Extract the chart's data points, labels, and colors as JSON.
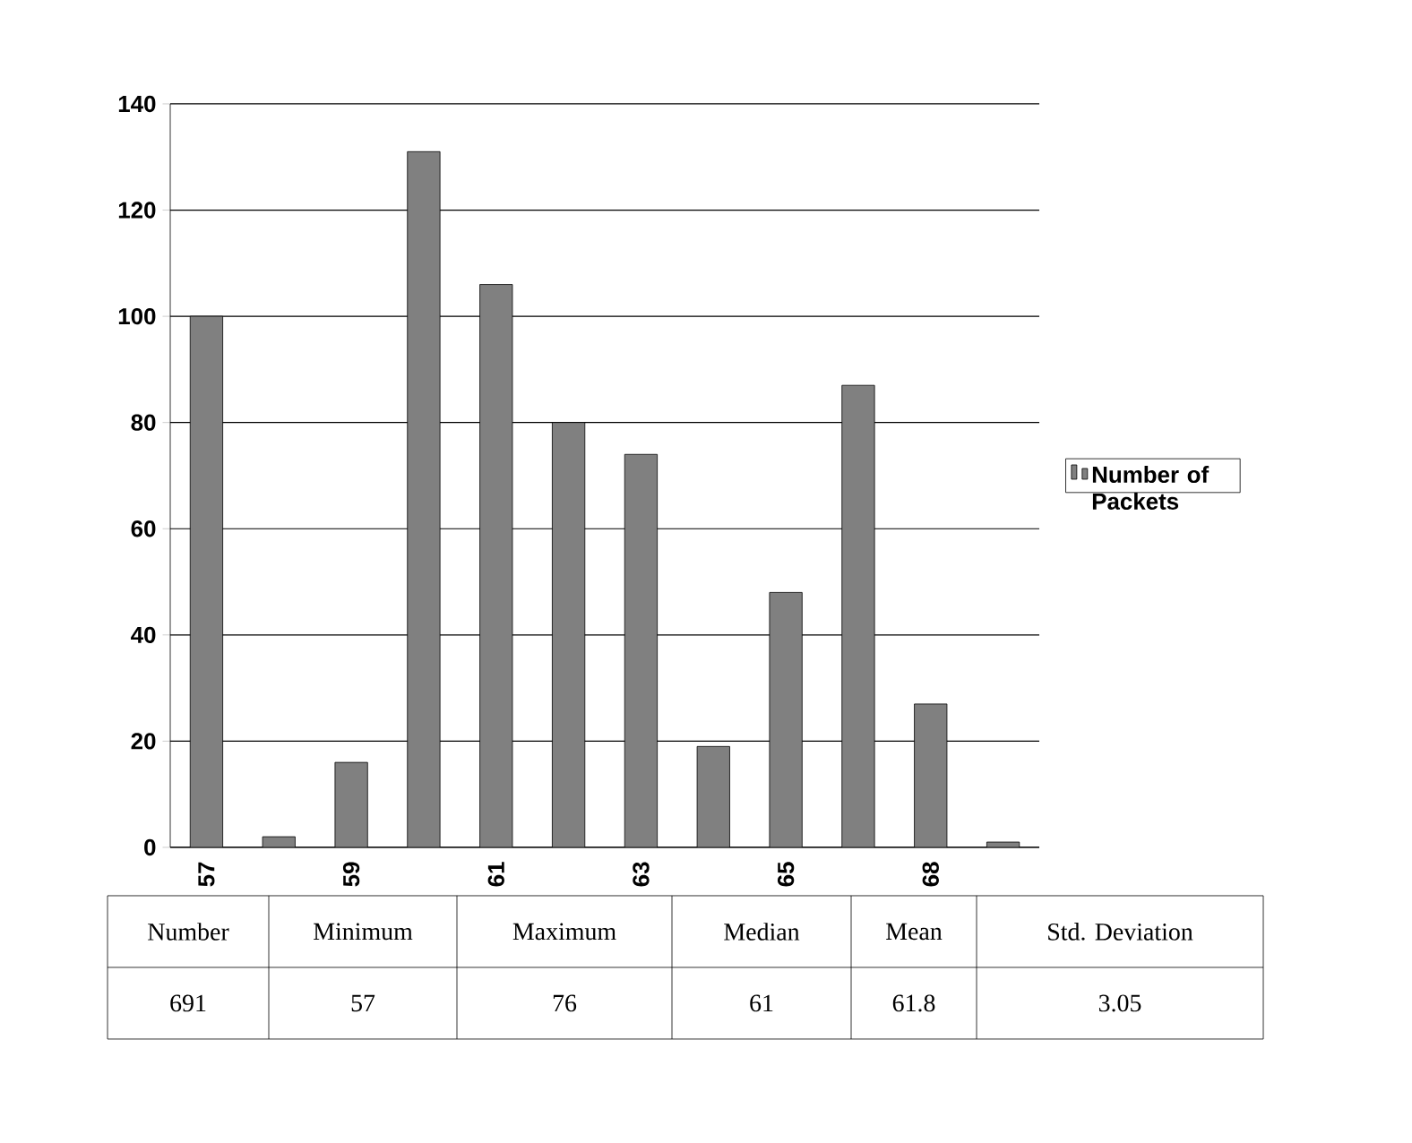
{
  "chart_data": {
    "type": "bar",
    "categories": [
      "57",
      null,
      "59",
      null,
      "61",
      null,
      "63",
      null,
      "65",
      null,
      "68",
      null
    ],
    "series": [
      {
        "name": "Number of Packets",
        "color": "#808080",
        "values": [
          100,
          2,
          16,
          131,
          106,
          80,
          74,
          19,
          48,
          87,
          27,
          1
        ]
      }
    ],
    "ylim": [
      0,
      140
    ],
    "yticks": [
      0,
      20,
      40,
      60,
      80,
      100,
      120,
      140
    ],
    "grid": "y",
    "legend": "right",
    "annotations": [
      "Number",
      "Minimum",
      "Maximum",
      "Median",
      "Mean",
      "Std. Deviation",
      "691",
      "57",
      "76",
      "61",
      "61.8",
      "3.05"
    ]
  }
}
